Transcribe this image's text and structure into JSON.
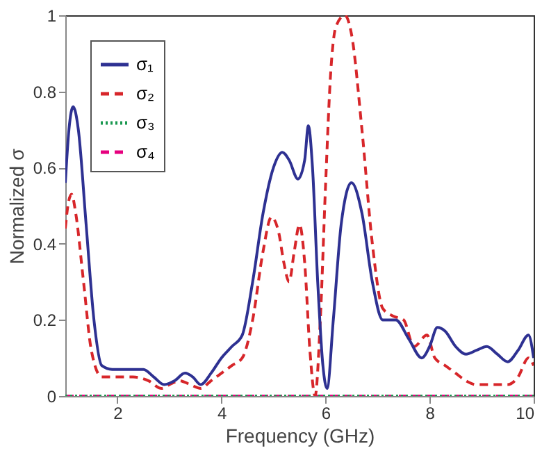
{
  "chart_data": {
    "type": "line",
    "xlabel": "Frequency (GHz)",
    "ylabel": "Normalized σ",
    "xlim": [
      1,
      10
    ],
    "ylim": [
      0,
      1
    ],
    "xticks": [
      2,
      4,
      6,
      8,
      10
    ],
    "yticks": [
      0,
      0.2,
      0.4,
      0.6,
      0.8,
      1
    ],
    "grid": false,
    "legend": "top left",
    "marker": "none",
    "series": [
      {
        "name": "σ₁",
        "color": "#2e3192",
        "line_style": "solid",
        "x": [
          1,
          1.07,
          1.15,
          1.25,
          1.4,
          1.55,
          1.7,
          1.9,
          2.2,
          2.5,
          2.7,
          2.9,
          3.1,
          3.3,
          3.45,
          3.6,
          3.8,
          4,
          4.2,
          4.4,
          4.6,
          4.8,
          5,
          5.17,
          5.3,
          5.47,
          5.6,
          5.67,
          5.75,
          5.85,
          5.95,
          6.03,
          6.15,
          6.3,
          6.5,
          6.7,
          6.9,
          7.1,
          7.35,
          7.6,
          7.85,
          8,
          8.15,
          8.3,
          8.5,
          8.7,
          8.9,
          9.1,
          9.3,
          9.5,
          9.7,
          9.9,
          10
        ],
        "values": [
          0.56,
          0.7,
          0.76,
          0.7,
          0.45,
          0.2,
          0.08,
          0.07,
          0.07,
          0.07,
          0.05,
          0.03,
          0.04,
          0.06,
          0.05,
          0.03,
          0.06,
          0.1,
          0.13,
          0.16,
          0.3,
          0.48,
          0.6,
          0.64,
          0.62,
          0.57,
          0.62,
          0.71,
          0.6,
          0.3,
          0.08,
          0.02,
          0.2,
          0.45,
          0.56,
          0.48,
          0.3,
          0.2,
          0.2,
          0.15,
          0.1,
          0.13,
          0.18,
          0.17,
          0.13,
          0.11,
          0.12,
          0.13,
          0.11,
          0.09,
          0.12,
          0.16,
          0.1
        ]
      },
      {
        "name": "σ₂",
        "color": "#d7262a",
        "line_style": "dashed",
        "x": [
          1,
          1.05,
          1.12,
          1.2,
          1.35,
          1.5,
          1.7,
          2,
          2.3,
          2.6,
          2.85,
          3,
          3.2,
          3.4,
          3.6,
          3.8,
          4,
          4.2,
          4.4,
          4.6,
          4.8,
          4.96,
          5.1,
          5.2,
          5.3,
          5.4,
          5.5,
          5.6,
          5.7,
          5.8,
          5.9,
          6,
          6.1,
          6.2,
          6.37,
          6.5,
          6.7,
          6.9,
          7.1,
          7.3,
          7.5,
          7.7,
          7.95,
          8.1,
          8.3,
          8.5,
          8.7,
          8.9,
          9.1,
          9.3,
          9.5,
          9.7,
          9.9,
          10
        ],
        "values": [
          0.44,
          0.5,
          0.53,
          0.48,
          0.3,
          0.12,
          0.05,
          0.05,
          0.05,
          0.04,
          0.02,
          0.03,
          0.04,
          0.03,
          0.02,
          0.04,
          0.06,
          0.08,
          0.1,
          0.2,
          0.38,
          0.47,
          0.43,
          0.35,
          0.3,
          0.38,
          0.45,
          0.35,
          0.12,
          0.0,
          0.2,
          0.55,
          0.85,
          0.97,
          1.0,
          0.95,
          0.7,
          0.4,
          0.23,
          0.21,
          0.2,
          0.13,
          0.16,
          0.1,
          0.08,
          0.06,
          0.04,
          0.03,
          0.03,
          0.03,
          0.03,
          0.05,
          0.1,
          0.08
        ]
      },
      {
        "name": "σ₃",
        "color": "#1a9850",
        "line_style": "dotted",
        "x": [
          1,
          10
        ],
        "values": [
          0,
          0
        ]
      },
      {
        "name": "σ₄",
        "color": "#e6007e",
        "line_style": "dashed",
        "x": [
          1,
          10
        ],
        "values": [
          0,
          0
        ]
      }
    ]
  }
}
